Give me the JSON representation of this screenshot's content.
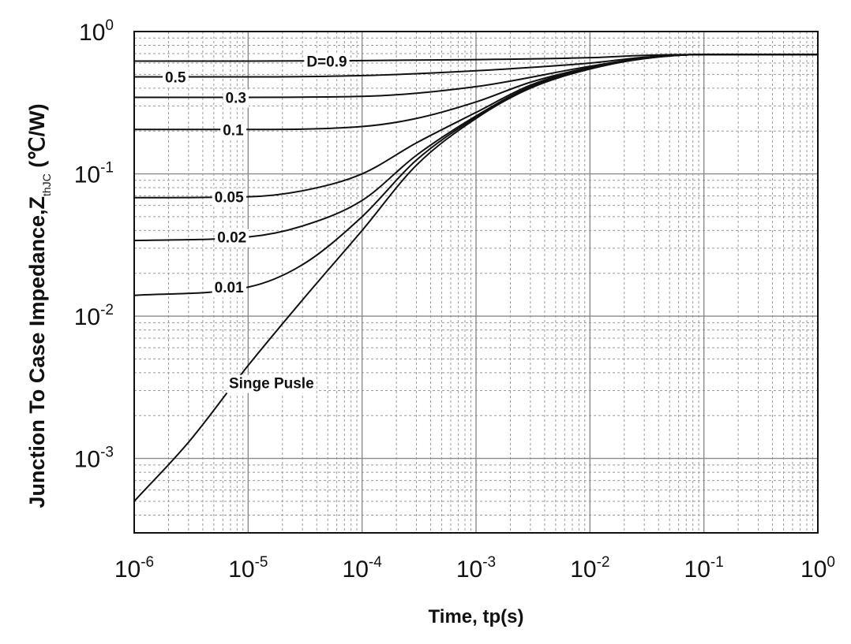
{
  "chart_data": {
    "type": "line",
    "title": "",
    "xlabel": "Time, tp(s)",
    "ylabel": {
      "main": "Junction To Case Impedance,Z",
      "subscript": "thJC",
      "unit": " (℃/W)"
    },
    "x_scale": "log",
    "y_scale": "log",
    "xlim": [
      1e-06,
      1
    ],
    "ylim": [
      0.0003,
      1
    ],
    "grid": true,
    "x_ticks": [
      {
        "base": "10",
        "exp": "-6"
      },
      {
        "base": "10",
        "exp": "-5"
      },
      {
        "base": "10",
        "exp": "-4"
      },
      {
        "base": "10",
        "exp": "-3"
      },
      {
        "base": "10",
        "exp": "-2"
      },
      {
        "base": "10",
        "exp": "-1"
      },
      {
        "base": "10",
        "exp": "0"
      }
    ],
    "y_ticks": [
      {
        "base": "10",
        "exp": "-3"
      },
      {
        "base": "10",
        "exp": "-2"
      },
      {
        "base": "10",
        "exp": "-1"
      },
      {
        "base": "10",
        "exp": "0"
      }
    ],
    "series": [
      {
        "name": "D=0.9",
        "x": [
          1e-06,
          1e-05,
          0.0001,
          0.001,
          0.01,
          0.03,
          0.1,
          1
        ],
        "y": [
          0.62,
          0.62,
          0.625,
          0.635,
          0.655,
          0.68,
          0.69,
          0.69
        ]
      },
      {
        "name": "0.5",
        "x": [
          1e-06,
          1e-05,
          0.0001,
          0.001,
          0.01,
          0.03,
          0.1,
          1
        ],
        "y": [
          0.48,
          0.48,
          0.49,
          0.53,
          0.6,
          0.66,
          0.69,
          0.69
        ]
      },
      {
        "name": "0.3",
        "x": [
          1e-06,
          1e-05,
          0.0001,
          0.001,
          0.01,
          0.03,
          0.1,
          1
        ],
        "y": [
          0.345,
          0.345,
          0.35,
          0.41,
          0.57,
          0.65,
          0.69,
          0.69
        ]
      },
      {
        "name": "0.1",
        "x": [
          1e-06,
          1e-05,
          0.0001,
          0.0003,
          0.001,
          0.003,
          0.01,
          0.03,
          0.1,
          1
        ],
        "y": [
          0.205,
          0.205,
          0.215,
          0.245,
          0.32,
          0.44,
          0.56,
          0.65,
          0.69,
          0.69
        ]
      },
      {
        "name": "0.05",
        "x": [
          1e-06,
          1e-05,
          3e-05,
          0.0001,
          0.0003,
          0.001,
          0.003,
          0.01,
          0.03,
          0.1,
          1
        ],
        "y": [
          0.068,
          0.069,
          0.076,
          0.1,
          0.165,
          0.27,
          0.42,
          0.555,
          0.65,
          0.69,
          0.69
        ]
      },
      {
        "name": "0.02",
        "x": [
          1e-06,
          1e-05,
          3e-05,
          0.0001,
          0.0003,
          0.001,
          0.003,
          0.01,
          0.03,
          0.1,
          1
        ],
        "y": [
          0.034,
          0.036,
          0.043,
          0.065,
          0.135,
          0.255,
          0.41,
          0.55,
          0.65,
          0.69,
          0.69
        ]
      },
      {
        "name": "0.01",
        "x": [
          1e-06,
          1e-05,
          3e-05,
          0.0001,
          0.0003,
          0.001,
          0.003,
          0.01,
          0.03,
          0.1,
          1
        ],
        "y": [
          0.014,
          0.016,
          0.023,
          0.05,
          0.125,
          0.25,
          0.405,
          0.55,
          0.65,
          0.69,
          0.69
        ]
      },
      {
        "name": "Singe Pusle",
        "x": [
          1e-06,
          3e-06,
          1e-05,
          3e-05,
          0.0001,
          0.0003,
          0.001,
          0.003,
          0.01,
          0.03,
          0.1,
          1
        ],
        "y": [
          0.0005,
          0.0013,
          0.0045,
          0.013,
          0.04,
          0.115,
          0.245,
          0.4,
          0.545,
          0.645,
          0.69,
          0.69
        ]
      }
    ],
    "annotations": [
      {
        "text": "D=0.9",
        "x": 4.9e-05,
        "y": 0.62
      },
      {
        "text": "0.5",
        "x": 2.3e-06,
        "y": 0.48
      },
      {
        "text": "0.3",
        "x": 7.8e-06,
        "y": 0.345
      },
      {
        "text": "0.1",
        "x": 7.4e-06,
        "y": 0.205
      },
      {
        "text": "0.05",
        "x": 6.8e-06,
        "y": 0.069
      },
      {
        "text": "0.02",
        "x": 7.2e-06,
        "y": 0.036
      },
      {
        "text": "0.01",
        "x": 6.8e-06,
        "y": 0.016
      },
      {
        "text": "Singe Pusle",
        "x": 1.6e-05,
        "y": 0.0034
      }
    ],
    "colors": {
      "curve": "#111111",
      "major_grid": "#8a8a8a",
      "minor_grid": "#9a9a9a",
      "frame": "#111111"
    }
  }
}
